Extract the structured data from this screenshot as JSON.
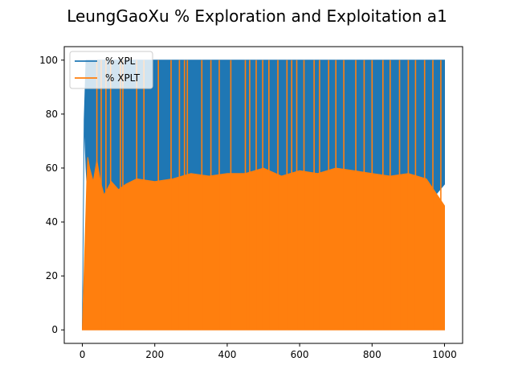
{
  "chart_data": {
    "type": "line",
    "title": "LeungGaoXu % Exploration and Exploitation a1",
    "xlabel": "",
    "ylabel": "",
    "xlim": [
      -50,
      1050
    ],
    "ylim": [
      -5,
      105
    ],
    "x_ticks": [
      0,
      200,
      400,
      600,
      800,
      1000
    ],
    "y_ticks": [
      0,
      20,
      40,
      60,
      80,
      100
    ],
    "grid": false,
    "legend": {
      "placement": "top-left"
    },
    "series": [
      {
        "name": "% XPL",
        "color": "#1f77b4",
        "x": [
          0,
          5,
          10,
          12,
          15,
          20,
          30,
          40,
          50,
          60,
          80,
          100,
          120,
          150,
          200,
          250,
          300,
          350,
          400,
          450,
          500,
          550,
          600,
          650,
          700,
          750,
          800,
          850,
          900,
          950,
          1000
        ],
        "high": [
          0,
          78,
          100,
          100,
          100,
          100,
          100,
          100,
          100,
          100,
          100,
          100,
          100,
          100,
          100,
          100,
          100,
          100,
          100,
          100,
          100,
          100,
          100,
          100,
          100,
          100,
          100,
          100,
          100,
          100,
          100
        ],
        "low": [
          0,
          78,
          60,
          55,
          55,
          55,
          52,
          50,
          50,
          48,
          48,
          47,
          46,
          47,
          46,
          47,
          47,
          46,
          47,
          46,
          47,
          46,
          46,
          45,
          46,
          46,
          46,
          46,
          46,
          46,
          54
        ]
      },
      {
        "name": "% XPLT",
        "color": "#ff7f0e",
        "x": [
          0,
          5,
          10,
          12,
          15,
          20,
          30,
          40,
          50,
          60,
          80,
          100,
          120,
          150,
          200,
          250,
          300,
          350,
          400,
          450,
          500,
          550,
          600,
          650,
          700,
          750,
          800,
          850,
          900,
          950,
          1000
        ],
        "high": [
          0,
          22,
          45,
          55,
          64,
          60,
          55,
          63,
          55,
          50,
          55,
          52,
          54,
          56,
          55,
          56,
          58,
          57,
          58,
          58,
          60,
          57,
          59,
          58,
          60,
          59,
          58,
          57,
          58,
          56,
          46
        ],
        "low": [
          0,
          0,
          0,
          0,
          0,
          0,
          0,
          0,
          0,
          0,
          0,
          0,
          0,
          0,
          0,
          0,
          0,
          0,
          0,
          0,
          0,
          0,
          0,
          0,
          0,
          0,
          0,
          0,
          0,
          0,
          0
        ],
        "spikes_to_100": [
          40,
          52,
          65,
          78,
          105,
          112,
          150,
          170,
          210,
          245,
          268,
          282,
          290,
          330,
          355,
          378,
          410,
          450,
          462,
          480,
          498,
          515,
          540,
          565,
          578,
          592,
          612,
          640,
          655,
          680,
          700,
          722,
          755,
          778,
          800,
          830,
          850,
          876,
          900,
          920,
          945,
          968,
          990
        ]
      }
    ]
  }
}
